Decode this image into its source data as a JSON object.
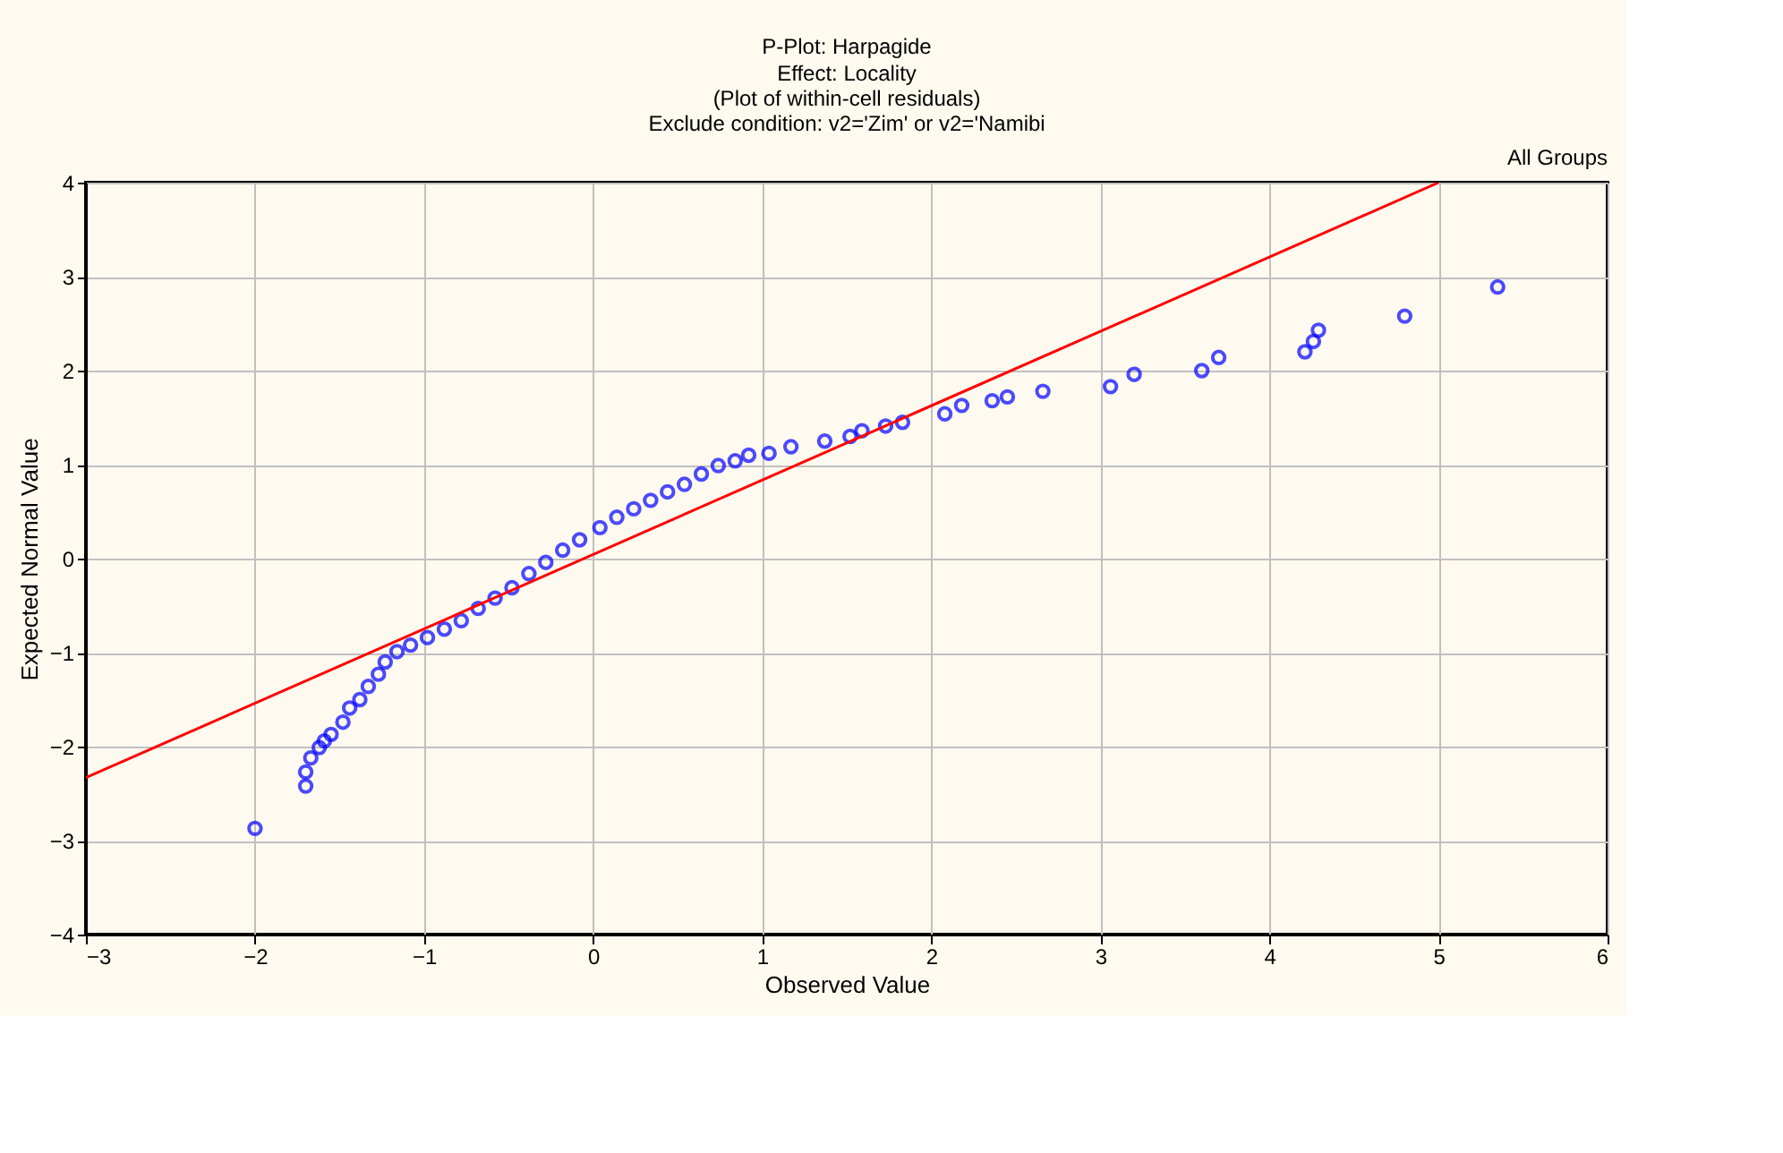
{
  "chart_data": {
    "type": "scatter",
    "title": "P-Plot: Harpagide",
    "subtitle": "Effect: Locality\n(Plot of within-cell residuals)\nExclude condition: v2='Zim' or v2='Namibi",
    "xlabel": "Observed Value",
    "ylabel": "Expected Normal Value",
    "annotations": [
      "All Groups"
    ],
    "xlim": [
      -3,
      6
    ],
    "xticks": [
      -3,
      -2,
      -1,
      0,
      1,
      2,
      3,
      4,
      5,
      6
    ],
    "ylim": [
      -4,
      4
    ],
    "yticks": [
      -4,
      -3,
      -2,
      -1,
      0,
      1,
      2,
      3,
      4
    ],
    "grid": true,
    "series": [
      {
        "marker": "circle",
        "color": "#0000ff",
        "x": [
          -2.0,
          -1.7,
          -1.7,
          -1.67,
          -1.62,
          -1.59,
          -1.55,
          -1.48,
          -1.44,
          -1.38,
          -1.33,
          -1.27,
          -1.23,
          -1.16,
          -1.08,
          -0.98,
          -0.88,
          -0.78,
          -0.68,
          -0.58,
          -0.48,
          -0.38,
          -0.28,
          -0.18,
          -0.08,
          0.04,
          0.14,
          0.24,
          0.34,
          0.44,
          0.54,
          0.64,
          0.74,
          0.84,
          0.92,
          1.04,
          1.17,
          1.37,
          1.52,
          1.59,
          1.73,
          1.83,
          2.08,
          2.18,
          2.36,
          2.45,
          2.66,
          3.06,
          3.2,
          3.6,
          3.7,
          4.21,
          4.26,
          4.29,
          4.8,
          5.35
        ],
        "values": [
          -2.87,
          -2.42,
          -2.27,
          -2.12,
          -2.01,
          -1.94,
          -1.87,
          -1.74,
          -1.59,
          -1.5,
          -1.36,
          -1.23,
          -1.1,
          -0.99,
          -0.92,
          -0.84,
          -0.75,
          -0.66,
          -0.53,
          -0.42,
          -0.31,
          -0.16,
          -0.04,
          0.09,
          0.2,
          0.33,
          0.44,
          0.53,
          0.62,
          0.71,
          0.79,
          0.9,
          0.99,
          1.04,
          1.1,
          1.12,
          1.19,
          1.25,
          1.3,
          1.36,
          1.41,
          1.45,
          1.54,
          1.63,
          1.68,
          1.72,
          1.78,
          1.83,
          1.96,
          2.0,
          2.14,
          2.2,
          2.31,
          2.43,
          2.58,
          2.89
        ]
      },
      {
        "type": "line",
        "marker": "none",
        "color": "#ff0000",
        "x": [
          -3,
          5
        ],
        "values": [
          -2.33,
          4.0
        ]
      }
    ]
  }
}
